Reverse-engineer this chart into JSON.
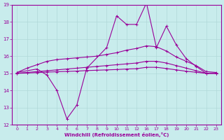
{
  "bg_color": "#c8ecec",
  "grid_color": "#b0d8d8",
  "line_color": "#990099",
  "xlabel": "Windchill (Refroidissement éolien,°C)",
  "xlim_data": [
    0,
    23
  ],
  "ylim": [
    12,
    19
  ],
  "yticks": [
    12,
    13,
    14,
    15,
    16,
    17,
    18,
    19
  ],
  "xtick_labels": [
    "0",
    "1",
    "2",
    "3",
    "4",
    "5",
    "6",
    "7",
    "8",
    "9",
    "10",
    "11",
    "12",
    "16",
    "17",
    "18",
    "19",
    "20",
    "21",
    "22",
    "23"
  ],
  "series": [
    {
      "x": [
        0,
        2,
        3,
        4,
        5,
        6,
        7,
        9,
        10,
        11,
        12,
        16,
        17,
        18,
        19,
        20,
        21,
        22,
        23
      ],
      "y": [
        15.05,
        15.25,
        14.9,
        14.0,
        12.35,
        13.15,
        15.3,
        16.5,
        18.35,
        17.85,
        17.85,
        19.1,
        16.5,
        17.75,
        16.65,
        15.85,
        15.4,
        15.0,
        15.0
      ]
    },
    {
      "x": [
        0,
        1,
        2,
        3,
        4,
        5,
        6,
        7,
        8,
        9,
        10,
        11,
        12,
        16,
        17,
        18,
        19,
        20,
        21,
        22,
        23
      ],
      "y": [
        15.05,
        15.3,
        15.5,
        15.7,
        15.8,
        15.85,
        15.9,
        15.95,
        16.0,
        16.1,
        16.2,
        16.35,
        16.45,
        16.6,
        16.55,
        16.3,
        15.95,
        15.7,
        15.45,
        15.1,
        15.05
      ]
    },
    {
      "x": [
        0,
        1,
        2,
        3,
        4,
        5,
        6,
        7,
        8,
        9,
        10,
        11,
        12,
        16,
        17,
        18,
        19,
        20,
        21,
        22,
        23
      ],
      "y": [
        15.0,
        15.05,
        15.1,
        15.15,
        15.2,
        15.25,
        15.3,
        15.35,
        15.4,
        15.45,
        15.5,
        15.55,
        15.6,
        15.7,
        15.7,
        15.6,
        15.45,
        15.3,
        15.15,
        15.0,
        15.0
      ]
    },
    {
      "x": [
        0,
        1,
        2,
        3,
        4,
        5,
        6,
        7,
        8,
        9,
        10,
        11,
        12,
        16,
        17,
        18,
        19,
        20,
        21,
        22,
        23
      ],
      "y": [
        15.0,
        15.02,
        15.04,
        15.07,
        15.09,
        15.11,
        15.13,
        15.16,
        15.18,
        15.2,
        15.22,
        15.25,
        15.27,
        15.35,
        15.35,
        15.28,
        15.2,
        15.12,
        15.06,
        15.0,
        15.0
      ]
    }
  ]
}
